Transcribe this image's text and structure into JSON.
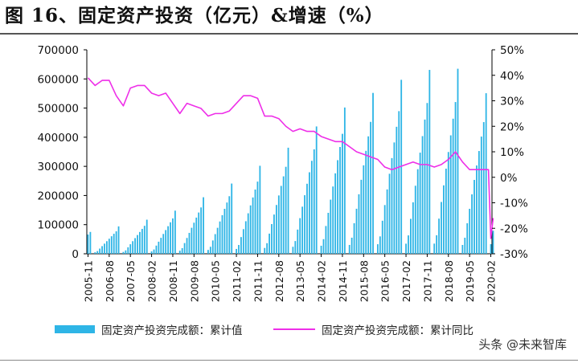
{
  "title": "图 16、固定资产投资（亿元）&增速（%）",
  "watermark": "头条 @未来智库",
  "colors": {
    "bars": "#2eb5e6",
    "line": "#ee2fe8",
    "axis": "#000000"
  },
  "chart_data": {
    "type": "bar+line",
    "left_axis": {
      "min": 0,
      "max": 700000,
      "ticks": [
        "0",
        "100000",
        "200000",
        "300000",
        "400000",
        "500000",
        "600000",
        "700000"
      ]
    },
    "right_axis": {
      "min": -30,
      "max": 50,
      "ticks": [
        "-30%",
        "-20%",
        "-10%",
        "0%",
        "10%",
        "20%",
        "30%",
        "40%",
        "50%"
      ]
    },
    "x_start": "2005-11",
    "x_ticks": [
      "2005-11",
      "2006-08",
      "2007-05",
      "2008-02",
      "2008-11",
      "2009-08",
      "2010-05",
      "2011-02",
      "2011-11",
      "2012-08",
      "2013-05",
      "2014-02",
      "2014-11",
      "2015-08",
      "2016-05",
      "2017-02",
      "2017-11",
      "2018-08",
      "2019-05",
      "2020-02"
    ],
    "series": [
      {
        "name": "固定资产投资完成额：累计值",
        "type": "bar",
        "year_ends": [
          75000,
          94000,
          117000,
          148000,
          194000,
          241000,
          302000,
          364000,
          437000,
          502000,
          552000,
          597000,
          631000,
          635000,
          551000
        ],
        "feb_2020": 33000
      },
      {
        "name": "固定资产投资完成额：累计同比",
        "type": "line",
        "points": [
          [
            "2005-11",
            39
          ],
          [
            "2006-02",
            36
          ],
          [
            "2006-05",
            38
          ],
          [
            "2006-08",
            38
          ],
          [
            "2006-11",
            32
          ],
          [
            "2007-02",
            28
          ],
          [
            "2007-05",
            35
          ],
          [
            "2007-08",
            36
          ],
          [
            "2007-11",
            36
          ],
          [
            "2008-02",
            33
          ],
          [
            "2008-05",
            32
          ],
          [
            "2008-08",
            33
          ],
          [
            "2008-11",
            29
          ],
          [
            "2009-02",
            25
          ],
          [
            "2009-05",
            29
          ],
          [
            "2009-08",
            28
          ],
          [
            "2009-11",
            27
          ],
          [
            "2010-02",
            24
          ],
          [
            "2010-05",
            25
          ],
          [
            "2010-08",
            25
          ],
          [
            "2010-11",
            26
          ],
          [
            "2011-02",
            29
          ],
          [
            "2011-05",
            32
          ],
          [
            "2011-08",
            32
          ],
          [
            "2011-11",
            31
          ],
          [
            "2012-02",
            24
          ],
          [
            "2012-05",
            24
          ],
          [
            "2012-08",
            23
          ],
          [
            "2012-11",
            20
          ],
          [
            "2013-02",
            18
          ],
          [
            "2013-05",
            19
          ],
          [
            "2013-08",
            18
          ],
          [
            "2013-11",
            18
          ],
          [
            "2014-02",
            16
          ],
          [
            "2014-05",
            15
          ],
          [
            "2014-08",
            14
          ],
          [
            "2014-11",
            14
          ],
          [
            "2015-02",
            12
          ],
          [
            "2015-05",
            10
          ],
          [
            "2015-08",
            9
          ],
          [
            "2015-11",
            8
          ],
          [
            "2016-02",
            7
          ],
          [
            "2016-05",
            4
          ],
          [
            "2016-08",
            3
          ],
          [
            "2016-11",
            4
          ],
          [
            "2017-02",
            5
          ],
          [
            "2017-05",
            6
          ],
          [
            "2017-08",
            5
          ],
          [
            "2017-11",
            5
          ],
          [
            "2018-02",
            4
          ],
          [
            "2018-05",
            5
          ],
          [
            "2018-08",
            7
          ],
          [
            "2018-11",
            10
          ],
          [
            "2019-02",
            6
          ],
          [
            "2019-05",
            3
          ],
          [
            "2019-08",
            3
          ],
          [
            "2019-11",
            3
          ],
          [
            "2020-01",
            3
          ],
          [
            "2020-02",
            -24
          ],
          [
            "2020-03",
            -16
          ]
        ]
      }
    ]
  }
}
